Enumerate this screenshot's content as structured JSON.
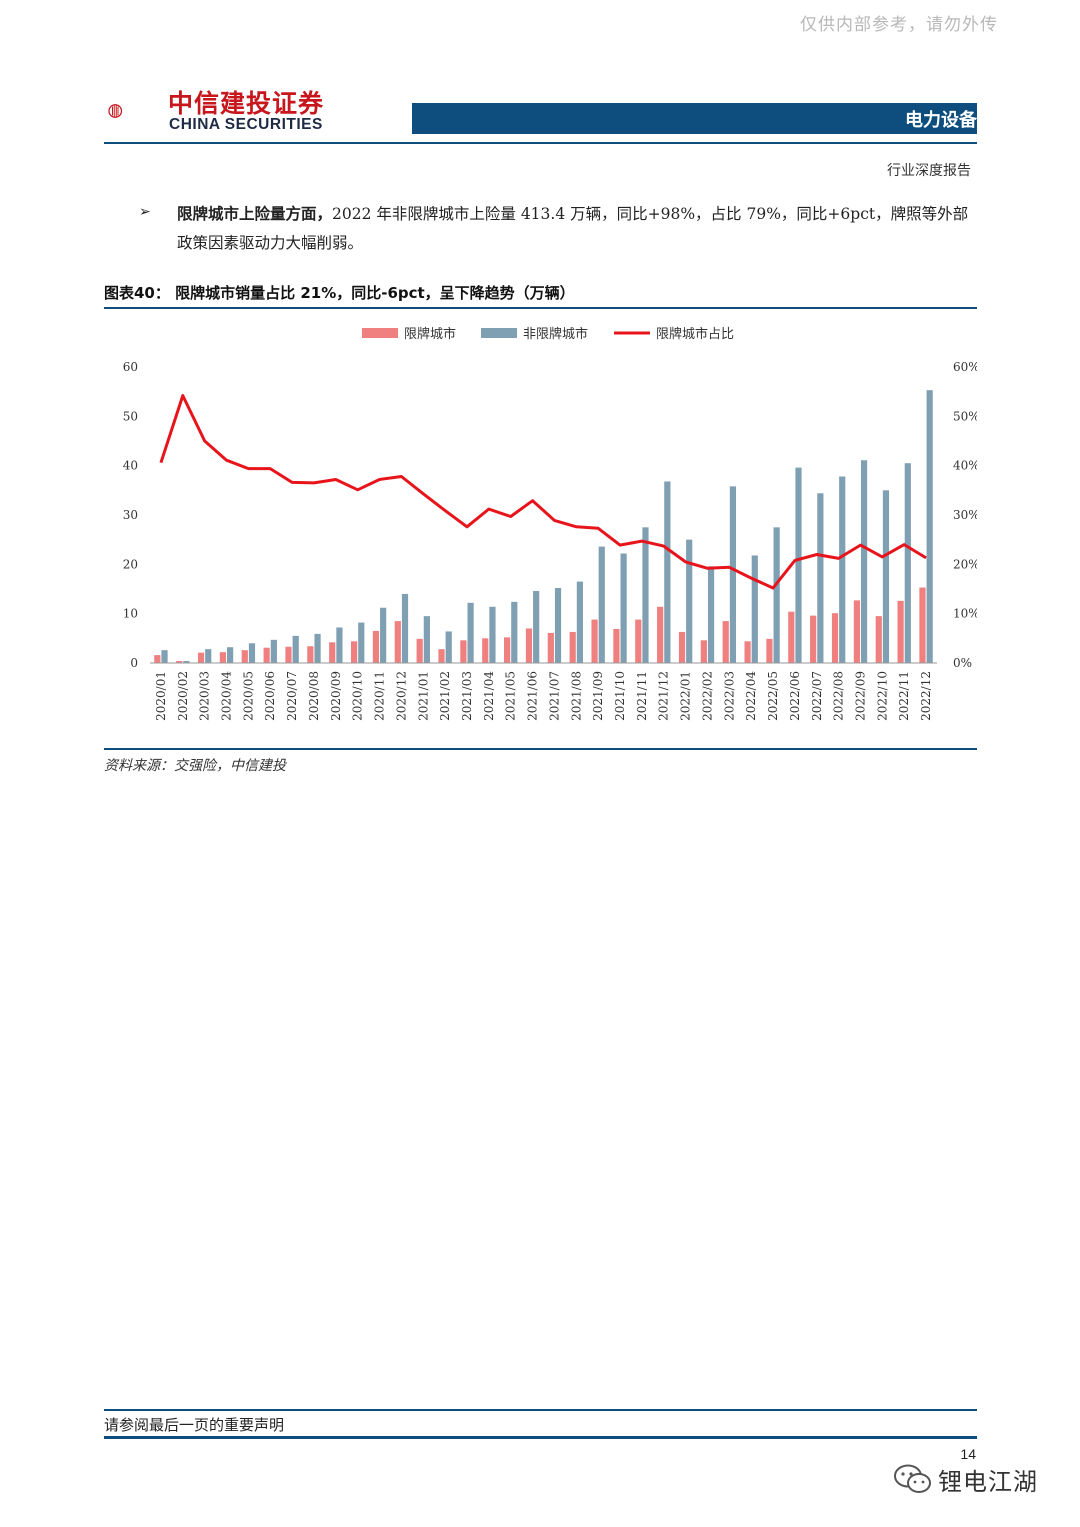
{
  "watermark": "仅供内部参考，请勿外传",
  "header": {
    "company_cn": "中信建投证券",
    "company_en": "CHINA SECURITIES",
    "sector": "电力设备",
    "report_type": "行业深度报告"
  },
  "bullet": {
    "bold": "限牌城市上险量方面，",
    "text": "2022 年非限牌城市上险量 413.4 万辆，同比+98%，占比 79%，同比+6pct，牌照等外部政策因素驱动力大幅削弱。"
  },
  "figure": {
    "title": "图表40：  限牌城市销量占比 21%，同比-6pct，呈下降趋势（万辆）",
    "source": "资料来源：交强险，中信建投"
  },
  "chart_data": {
    "type": "bar",
    "categories": [
      "2020/01",
      "2020/02",
      "2020/03",
      "2020/04",
      "2020/05",
      "2020/06",
      "2020/07",
      "2020/08",
      "2020/09",
      "2020/10",
      "2020/11",
      "2020/12",
      "2021/01",
      "2021/02",
      "2021/03",
      "2021/04",
      "2021/05",
      "2021/06",
      "2021/07",
      "2021/08",
      "2021/09",
      "2021/10",
      "2021/11",
      "2021/12",
      "2022/01",
      "2022/02",
      "2022/03",
      "2022/04",
      "2022/05",
      "2022/06",
      "2022/07",
      "2022/08",
      "2022/09",
      "2022/10",
      "2022/11",
      "2022/12"
    ],
    "series": [
      {
        "name": "限牌城市",
        "kind": "bar",
        "axis": "left",
        "color": "#f08080",
        "values": [
          1.6,
          0.4,
          2.1,
          2.2,
          2.6,
          3.1,
          3.3,
          3.4,
          4.2,
          4.4,
          6.5,
          8.5,
          4.9,
          2.8,
          4.6,
          5.0,
          5.2,
          7.0,
          6.1,
          6.3,
          8.8,
          6.9,
          8.8,
          11.4,
          6.3,
          4.6,
          8.5,
          4.4,
          4.9,
          10.4,
          9.6,
          10.1,
          12.7,
          9.5,
          12.6,
          15.3
        ]
      },
      {
        "name": "非限牌城市",
        "kind": "bar",
        "axis": "left",
        "color": "#7f9fb3",
        "values": [
          2.6,
          0.4,
          2.8,
          3.2,
          4.0,
          4.7,
          5.5,
          5.9,
          7.2,
          8.2,
          11.2,
          14.0,
          9.5,
          6.4,
          12.2,
          11.4,
          12.4,
          14.6,
          15.2,
          16.5,
          23.6,
          22.2,
          27.5,
          36.8,
          25.0,
          19.6,
          35.8,
          21.8,
          27.5,
          39.6,
          34.4,
          37.8,
          41.1,
          35.0,
          40.5,
          55.3
        ]
      },
      {
        "name": "限牌城市占比",
        "kind": "line",
        "axis": "right",
        "color": "#e8141b",
        "values": [
          40.6,
          54.2,
          45.0,
          41.1,
          39.4,
          39.4,
          36.6,
          36.5,
          37.2,
          35.1,
          37.2,
          37.8,
          34.3,
          30.9,
          27.6,
          31.2,
          29.7,
          32.9,
          28.9,
          27.6,
          27.3,
          23.9,
          24.7,
          23.7,
          20.5,
          19.2,
          19.4,
          17.2,
          15.2,
          20.8,
          22.0,
          21.2,
          23.9,
          21.5,
          24.0,
          21.3
        ]
      }
    ],
    "ylim": [
      0,
      60
    ],
    "y2lim": [
      0,
      0.6
    ],
    "yticks": [
      "0",
      "10",
      "20",
      "30",
      "40",
      "50",
      "60"
    ],
    "y2ticks": [
      "0%",
      "10%",
      "20%",
      "30%",
      "40%",
      "50%",
      "60%"
    ],
    "legend_position": "top-center",
    "grid": false
  },
  "footer": {
    "disclaimer": "请参阅最后一页的重要声明",
    "page": "14",
    "wechat_name": "锂电江湖"
  }
}
